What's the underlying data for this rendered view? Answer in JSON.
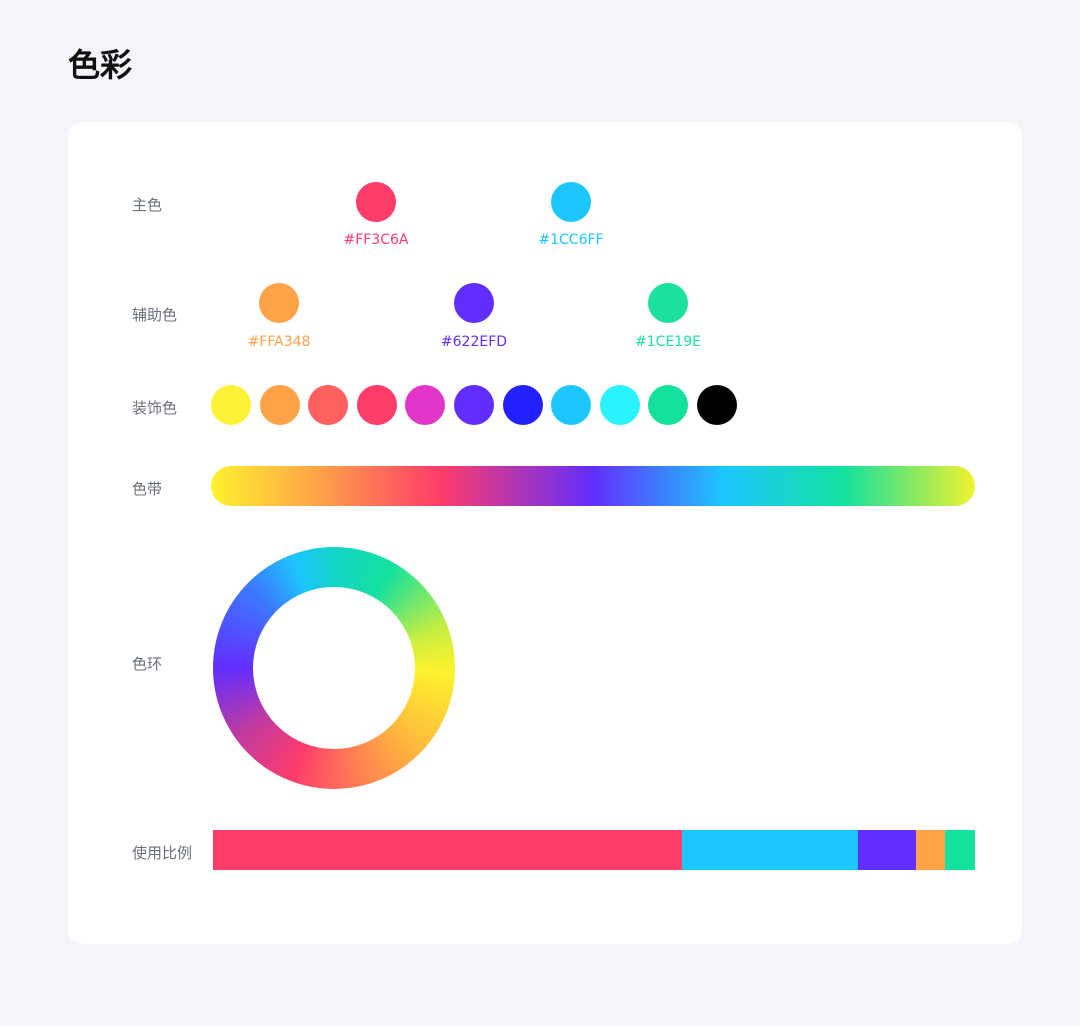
{
  "title": "色彩",
  "rows": {
    "primary": "主色",
    "secondary": "辅助色",
    "decorative": "装饰色",
    "band": "色带",
    "wheel": "色环",
    "ratio": "使用比例"
  },
  "primary": [
    {
      "hex": "#FF3C6A"
    },
    {
      "hex": "#1CC6FF"
    }
  ],
  "secondary": [
    {
      "hex": "#FFA348"
    },
    {
      "hex": "#622EFD"
    },
    {
      "hex": "#1CE19E"
    }
  ],
  "decorative": [
    "#FFF236",
    "#FFA348",
    "#FF6060",
    "#FF3C6A",
    "#E236C8",
    "#622EFD",
    "#2222FF",
    "#1CC6FF",
    "#2AF3FF",
    "#14E19E",
    "#000000"
  ],
  "band_colors": [
    "#FFF22E",
    "#FFA348",
    "#FF3C6A",
    "#622EFD",
    "#1CC6FF",
    "#14E19E",
    "#F0F22E"
  ],
  "usage_ratio": [
    {
      "color": "#FF3C6A",
      "percent": 61.5
    },
    {
      "color": "#1CC6FF",
      "percent": 23
    },
    {
      "color": "#622EFD",
      "percent": 7.7
    },
    {
      "color": "#FFA348",
      "percent": 3.8
    },
    {
      "color": "#14E19E",
      "percent": 3.9
    }
  ]
}
